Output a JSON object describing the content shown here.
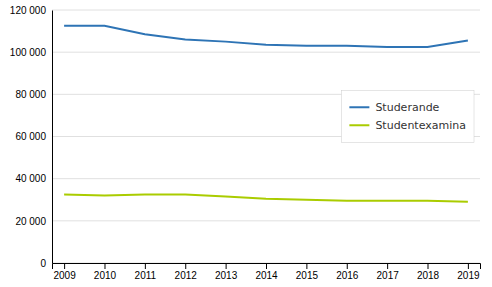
{
  "chart_data": {
    "type": "line",
    "x": [
      2009,
      2010,
      2011,
      2012,
      2013,
      2014,
      2015,
      2016,
      2017,
      2018,
      2019
    ],
    "series": [
      {
        "name": "Studerande",
        "color": "#2E74B5",
        "values": [
          112500,
          112500,
          108500,
          106000,
          105000,
          103500,
          103000,
          103000,
          102500,
          102500,
          105500
        ]
      },
      {
        "name": "Studentexamina",
        "color": "#AACC00",
        "values": [
          32500,
          32000,
          32500,
          32500,
          31500,
          30500,
          30000,
          29500,
          29500,
          29500,
          29000
        ]
      }
    ],
    "xlim": [
      2008.7,
      2019.3
    ],
    "xticks": [
      2009,
      2010,
      2011,
      2012,
      2013,
      2014,
      2015,
      2016,
      2017,
      2018,
      2019
    ],
    "ylim": [
      0,
      120000
    ],
    "yticks": [
      0,
      {
        "value": 20000,
        "label": "20 000"
      },
      {
        "value": 40000,
        "label": "40 000"
      },
      {
        "value": 60000,
        "label": "60 000"
      },
      {
        "value": 80000,
        "label": "80 000"
      },
      {
        "value": 100000,
        "label": "100 000"
      },
      {
        "value": 120000,
        "label": "120 000"
      }
    ],
    "grid": true,
    "legend": "right"
  }
}
